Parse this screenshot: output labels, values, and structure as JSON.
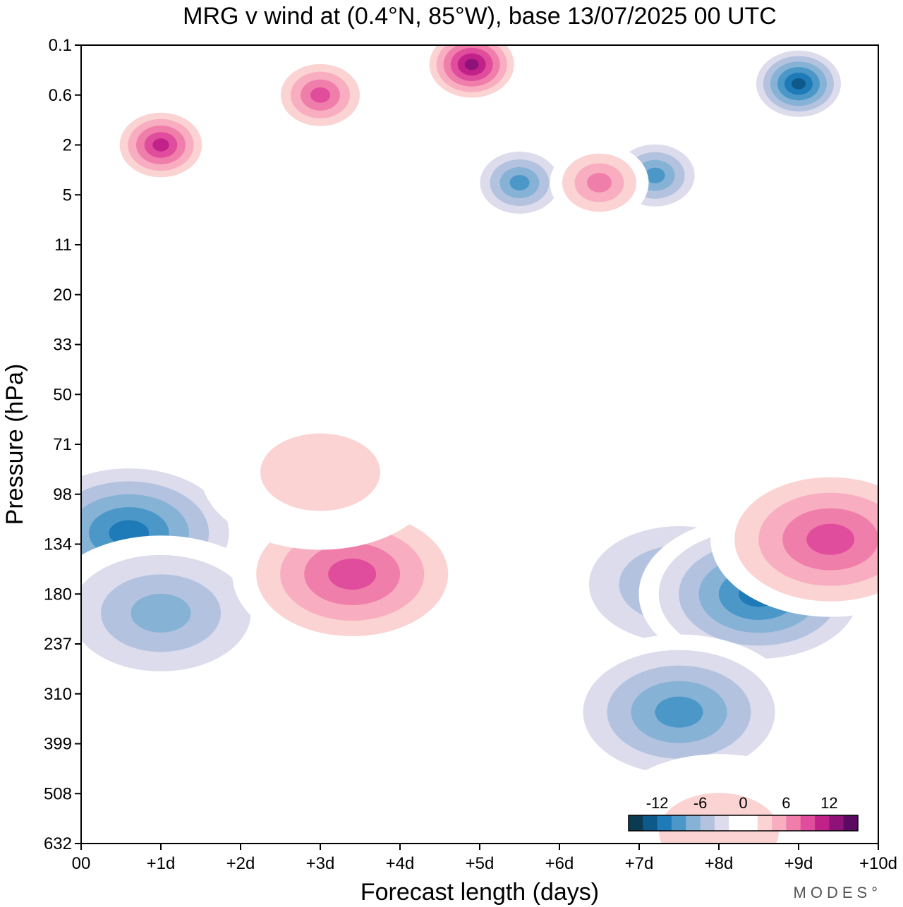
{
  "chart_data": {
    "type": "heatmap",
    "title": "MRG v wind at (0.4°N, 85°W),  base 13/07/2025  00 UTC",
    "xlabel": "Forecast length (days)",
    "ylabel": "Pressure (hPa)",
    "x_ticks": [
      "00",
      "+1d",
      "+2d",
      "+3d",
      "+4d",
      "+5d",
      "+6d",
      "+7d",
      "+8d",
      "+9d",
      "+10d"
    ],
    "y_ticks": [
      "0.1",
      "0.6",
      "2",
      "5",
      "11",
      "20",
      "33",
      "50",
      "71",
      "98",
      "134",
      "180",
      "237",
      "310",
      "399",
      "508",
      "632"
    ],
    "y_scale": "pressure levels (top = 0.1 hPa, bottom = 632 hPa)",
    "x_range_days": [
      0,
      10
    ],
    "colorbar": {
      "tick_labels": [
        "-12",
        "-6",
        "0",
        "6",
        "12"
      ],
      "levels": [
        -16,
        -14,
        -12,
        -10,
        -8,
        -6,
        -4,
        -2,
        0,
        2,
        4,
        6,
        8,
        10,
        12,
        14,
        16
      ],
      "colors": [
        "#0b3b52",
        "#0d5a8a",
        "#1f7ab8",
        "#4b98c8",
        "#86b2d6",
        "#b3c2df",
        "#dcdcec",
        "#ffffff",
        "#ffffff",
        "#fbd3d3",
        "#f8aec0",
        "#f07eaa",
        "#e04d9c",
        "#c0228a",
        "#8e1278",
        "#5a0a60"
      ]
    },
    "features": [
      {
        "day": 0.6,
        "hpa": 125,
        "v": -12
      },
      {
        "day": 1.0,
        "hpa": 200,
        "v": -8
      },
      {
        "day": 3.4,
        "hpa": 160,
        "v": 9
      },
      {
        "day": 7.5,
        "hpa": 170,
        "v": -7
      },
      {
        "day": 8.5,
        "hpa": 180,
        "v": -11
      },
      {
        "day": 7.5,
        "hpa": 340,
        "v": -10
      },
      {
        "day": 9.4,
        "hpa": 130,
        "v": 9
      },
      {
        "day": 1.0,
        "hpa": 2,
        "v": 11
      },
      {
        "day": 3.0,
        "hpa": 0.6,
        "v": 10
      },
      {
        "day": 4.9,
        "hpa": 0.2,
        "v": 13
      },
      {
        "day": 9.0,
        "hpa": 0.4,
        "v": -13
      },
      {
        "day": 5.5,
        "hpa": 4,
        "v": -10
      },
      {
        "day": 7.2,
        "hpa": 3.5,
        "v": -10
      },
      {
        "day": 6.5,
        "hpa": 4,
        "v": 8
      },
      {
        "day": 3.0,
        "hpa": 85,
        "v": 4
      },
      {
        "day": 8.0,
        "hpa": 600,
        "v": 4
      }
    ],
    "grid": false,
    "legend": "bottom-right"
  },
  "branding": {
    "logo": "MODES°"
  }
}
